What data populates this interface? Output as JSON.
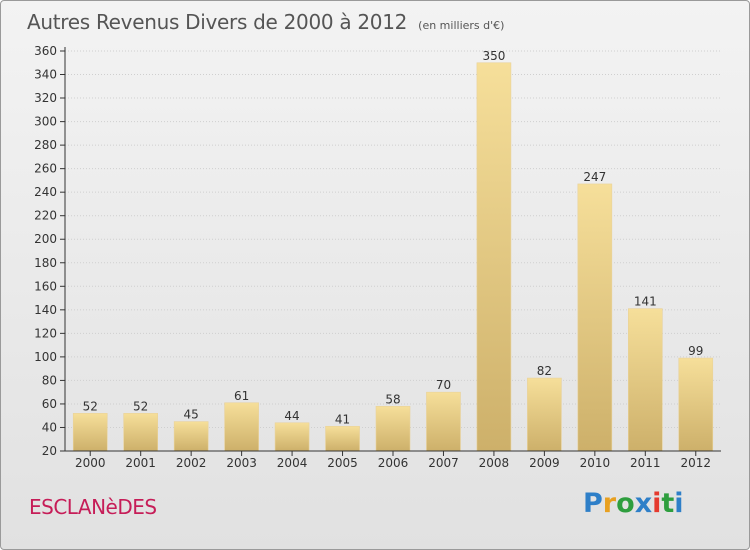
{
  "title": "Autres Revenus Divers de 2000 à 2012",
  "subtitle": "(en milliers d'€)",
  "commune": "ESCLANèDES",
  "brand": {
    "letters": [
      "P",
      "r",
      "o",
      "x",
      "i",
      "t",
      "i"
    ],
    "colors": [
      "#2e7fc8",
      "#e8a020",
      "#2e9e3e",
      "#2e7fc8",
      "#e53a2e",
      "#2e9e3e",
      "#2e7fc8"
    ]
  },
  "colors": {
    "bar_light": "#f6df9a",
    "bar_dark": "#cdb06a",
    "axis": "#333333",
    "grid": "#cfcfcf",
    "commune": "#c61d58"
  },
  "chart_data": {
    "type": "bar",
    "title": "Autres Revenus Divers de 2000 à 2012",
    "subtitle": "(en milliers d'€)",
    "categories": [
      "2000",
      "2001",
      "2002",
      "2003",
      "2004",
      "2005",
      "2006",
      "2007",
      "2008",
      "2009",
      "2010",
      "2011",
      "2012"
    ],
    "values": [
      52,
      52,
      45,
      61,
      44,
      41,
      58,
      70,
      350,
      82,
      247,
      141,
      99
    ],
    "ylim": [
      20,
      360
    ],
    "yticks": [
      20,
      40,
      60,
      80,
      100,
      120,
      140,
      160,
      180,
      200,
      220,
      240,
      260,
      280,
      300,
      320,
      340,
      360
    ],
    "grid": true,
    "xlabel": "",
    "ylabel": ""
  }
}
